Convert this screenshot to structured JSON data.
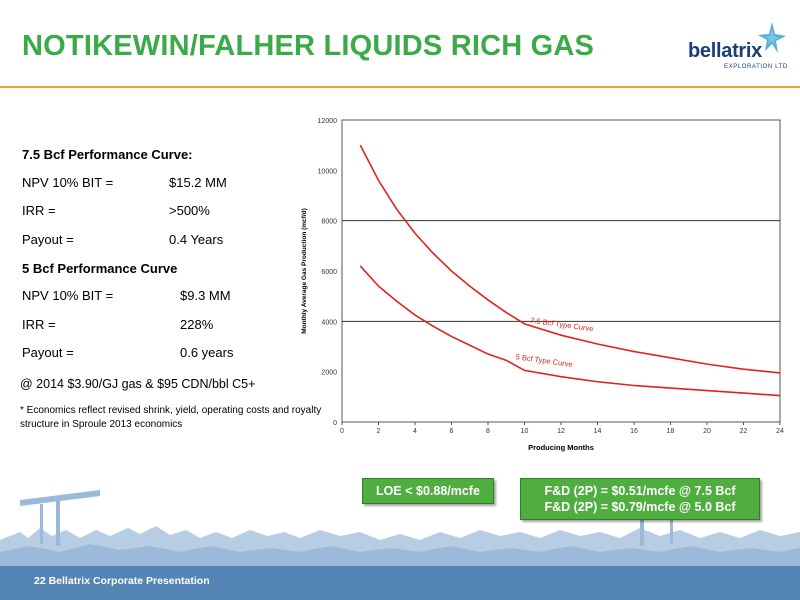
{
  "header": {
    "title": "NOTIKEWIN/FALHER LIQUIDS RICH GAS",
    "logo_text": "bellatrix",
    "logo_subtext": "EXPLORATION LTD",
    "accent_color": "#3aab47",
    "rule_color": "#e8a33c"
  },
  "metrics": {
    "curve_75": {
      "heading": "7.5 Bcf Performance Curve:",
      "rows": [
        {
          "label": "NPV 10% BIT =",
          "value": "$15.2 MM"
        },
        {
          "label": "IRR =",
          "value": ">500%"
        },
        {
          "label": "Payout =",
          "value": "0.4 Years"
        }
      ]
    },
    "curve_5": {
      "heading": "5 Bcf Performance Curve",
      "rows": [
        {
          "label": "NPV 10% BIT =",
          "value": "$9.3 MM"
        },
        {
          "label": "IRR =",
          "value": "228%"
        },
        {
          "label": "Payout =",
          "value": "0.6 years"
        }
      ]
    },
    "pricing_note": "@ 2014 $3.90/GJ gas & $95 CDN/bbl C5+",
    "footnote": "* Economics reflect revised shrink, yield, operating costs and royalty structure in Sproule 2013 economics"
  },
  "boxes": {
    "loe": "LOE < $0.88/mcfe",
    "fd_line1": "F&D (2P) = $0.51/mcfe @ 7.5 Bcf",
    "fd_line2": "F&D (2P) = $0.79/mcfe @ 5.0 Bcf"
  },
  "footer": {
    "page_label": "22  Bellatrix Corporate Presentation"
  },
  "chart_data": {
    "type": "line",
    "title": "",
    "xlabel": "Producing Months",
    "ylabel": "Monthly Average Gas Production (mcf/d)",
    "xlim": [
      0,
      24
    ],
    "ylim": [
      0,
      12000
    ],
    "x_ticks": [
      0,
      2,
      4,
      6,
      8,
      10,
      12,
      14,
      16,
      18,
      20,
      22,
      24
    ],
    "y_ticks": [
      0,
      2000,
      4000,
      6000,
      8000,
      10000,
      12000
    ],
    "gridlines_y": [
      4000,
      8000
    ],
    "series": [
      {
        "name": "7.5 Bcf Type Curve",
        "color": "#e0241b",
        "x": [
          1,
          2,
          3,
          4,
          5,
          6,
          7,
          8,
          9,
          10,
          12,
          14,
          16,
          18,
          20,
          22,
          24
        ],
        "y": [
          11000,
          9600,
          8450,
          7500,
          6700,
          6000,
          5400,
          4850,
          4350,
          3900,
          3450,
          3100,
          2800,
          2550,
          2300,
          2100,
          1950
        ]
      },
      {
        "name": "5 Bcf Type Curve",
        "color": "#e0241b",
        "x": [
          1,
          2,
          3,
          4,
          5,
          6,
          7,
          8,
          9,
          10,
          12,
          14,
          16,
          18,
          20,
          22,
          24
        ],
        "y": [
          6200,
          5400,
          4800,
          4250,
          3800,
          3400,
          3050,
          2700,
          2450,
          2050,
          1800,
          1600,
          1450,
          1350,
          1250,
          1150,
          1050
        ]
      }
    ],
    "annotations": [
      {
        "text": "7.5 Bcf Type Curve",
        "x": 10.3,
        "y": 3950,
        "angle": 8
      },
      {
        "text": "5 Bcf Type Curve",
        "x": 9.5,
        "y": 2500,
        "angle": 8
      }
    ]
  }
}
